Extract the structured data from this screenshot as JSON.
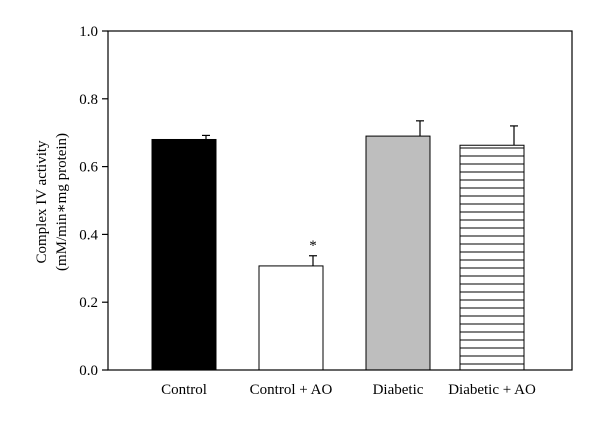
{
  "chart_data": {
    "type": "bar",
    "title": "",
    "xlabel": "",
    "ylabel_lines": [
      "Complex IV activity",
      "(mM/min∗mg protein)"
    ],
    "ylim": [
      0,
      1.0
    ],
    "yticks": [
      0.0,
      0.2,
      0.4,
      0.6,
      0.8,
      1.0
    ],
    "ytick_labels": [
      "0.0",
      "0.2",
      "0.4",
      "0.6",
      "0.8",
      "1.0"
    ],
    "grid": false,
    "legend": "none",
    "categories": [
      "Control",
      "Control + AO",
      "Diabetic",
      "Diabetic + AO"
    ],
    "values": [
      0.68,
      0.307,
      0.69,
      0.663
    ],
    "errors": [
      0.012,
      0.03,
      0.045,
      0.057
    ],
    "fills": [
      {
        "color": "#000000",
        "pattern": "solid"
      },
      {
        "color": "#ffffff",
        "pattern": "solid"
      },
      {
        "color": "#bebebe",
        "pattern": "solid"
      },
      {
        "color": "#ffffff",
        "pattern": "horizontal-lines"
      }
    ],
    "annotations": [
      {
        "category": "Control + AO",
        "text": "*"
      }
    ]
  }
}
